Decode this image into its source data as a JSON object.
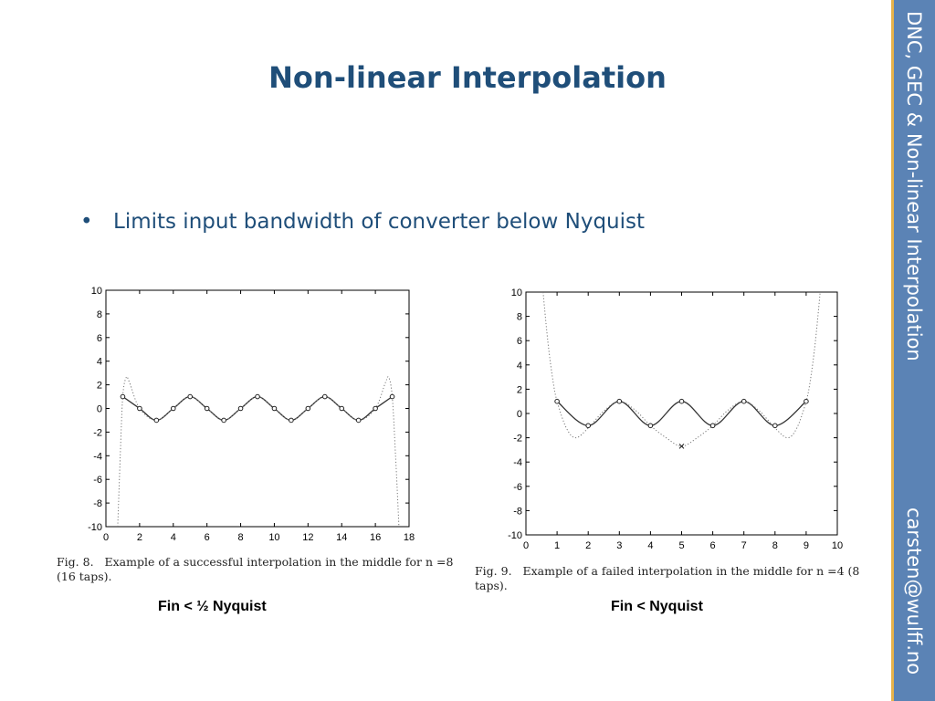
{
  "slide": {
    "title": "Non-linear Interpolation",
    "bullet": "Limits input bandwidth of converter below Nyquist",
    "bullet_marker": "•",
    "sidebar_title": "DNC, GEC & Non-linear Interpolation",
    "sidebar_email": "carsten@wulff.no",
    "colors": {
      "title": "#1f4e79",
      "sidebar": "#5b83b5",
      "sidebar_edge": "#e8b34a"
    }
  },
  "figures": [
    {
      "caption_prefix": "Fig. 8.",
      "caption": "Example of a successful interpolation in the middle for n =8 (16 taps).",
      "label": "Fin < ½ Nyquist"
    },
    {
      "caption_prefix": "Fig. 9.",
      "caption": "Example of a failed interpolation in the middle for n =4 (8 taps).",
      "label": "Fin < Nyquist"
    }
  ],
  "chart_data": [
    {
      "type": "line",
      "xlim": [
        0,
        18
      ],
      "ylim": [
        -10,
        10
      ],
      "xticks": [
        0,
        2,
        4,
        6,
        8,
        10,
        12,
        14,
        16,
        18
      ],
      "yticks": [
        10,
        8,
        6,
        4,
        2,
        0,
        -2,
        -4,
        -6,
        -8,
        -10
      ],
      "series": [
        {
          "style": "solid",
          "x": [
            1,
            2,
            3,
            4,
            5,
            6,
            7,
            8,
            9,
            10,
            11,
            12,
            13,
            14,
            15,
            16,
            17
          ],
          "y": [
            1,
            0,
            -1,
            0,
            1,
            0,
            -1,
            0,
            1,
            0,
            -1,
            0,
            1,
            0,
            -1,
            0,
            1
          ]
        },
        {
          "style": "dotted",
          "x": [
            0.7,
            0.85,
            1.0,
            1.2,
            1.4,
            2,
            3,
            4,
            5,
            6,
            7,
            8,
            9,
            10,
            11,
            12,
            13,
            14,
            15,
            16,
            16.6,
            16.8,
            17.0,
            17.2,
            17.4
          ],
          "y": [
            -10,
            -4,
            1,
            2.6,
            2.2,
            0,
            -1,
            0,
            1,
            0,
            -1,
            0,
            1,
            0,
            -1,
            0,
            1,
            0,
            -1,
            0,
            2.2,
            2.6,
            1,
            -4,
            -10
          ]
        },
        {
          "style": "markers",
          "x": [
            1,
            2,
            3,
            4,
            5,
            6,
            7,
            8,
            9,
            10,
            11,
            12,
            13,
            14,
            15,
            16,
            17
          ],
          "y": [
            1,
            0,
            -1,
            0,
            1,
            0,
            -1,
            0,
            1,
            0,
            -1,
            0,
            1,
            0,
            -1,
            0,
            1
          ]
        }
      ]
    },
    {
      "type": "line",
      "xlim": [
        0,
        10
      ],
      "ylim": [
        -10,
        10
      ],
      "xticks": [
        0,
        1,
        2,
        3,
        4,
        5,
        6,
        7,
        8,
        9,
        10
      ],
      "yticks": [
        10,
        8,
        6,
        4,
        2,
        0,
        -2,
        -4,
        -6,
        -8,
        -10
      ],
      "series": [
        {
          "style": "solid",
          "x": [
            1,
            2,
            3,
            4,
            5,
            6,
            7,
            8,
            9
          ],
          "y": [
            1,
            -1,
            1,
            -1,
            1,
            -1,
            1,
            -1,
            1
          ]
        },
        {
          "style": "dotted",
          "x": [
            0.55,
            0.7,
            0.85,
            1,
            1.3,
            1.6,
            2,
            2.5,
            3,
            3.5,
            4,
            4.5,
            5,
            5.5,
            6,
            6.5,
            7,
            7.5,
            8,
            8.4,
            8.7,
            9,
            9.15,
            9.3,
            9.45
          ],
          "y": [
            10,
            6,
            3,
            1,
            -1.2,
            -2,
            -1.2,
            0.2,
            1,
            0.3,
            -1,
            -2,
            -2.7,
            -2,
            -1,
            0.3,
            1,
            0.2,
            -1.2,
            -2,
            -1.2,
            1,
            3,
            6,
            10
          ]
        },
        {
          "style": "markers",
          "x": [
            1,
            2,
            3,
            4,
            5,
            6,
            7,
            8,
            9
          ],
          "y": [
            1,
            -1,
            1,
            -1,
            1,
            -1,
            1,
            -1,
            1
          ]
        },
        {
          "style": "cross",
          "x": [
            5
          ],
          "y": [
            -2.7
          ]
        }
      ]
    }
  ]
}
